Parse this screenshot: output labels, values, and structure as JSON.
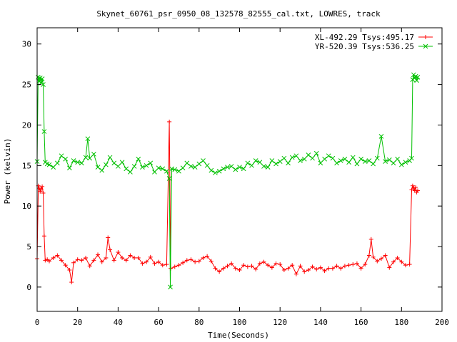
{
  "chart_data": {
    "type": "scatter",
    "title": "Skynet_60761_psr_0950_08_132578_82555_cal.txt, LOWRES, track",
    "xlabel": "Time(Seconds)",
    "ylabel": "Power (kelvin)",
    "xlim": [
      0,
      200
    ],
    "ylim": [
      -3,
      32
    ],
    "xticks": [
      0,
      20,
      40,
      60,
      80,
      100,
      120,
      140,
      160,
      180,
      200
    ],
    "yticks": [
      0,
      5,
      10,
      15,
      20,
      25,
      30
    ],
    "xtick_labels": [
      "0",
      "20",
      "40",
      "60",
      "80",
      "100",
      "120",
      "140",
      "160",
      "180",
      "200"
    ],
    "ytick_labels": [
      "0",
      "5",
      "10",
      "15",
      "20",
      "25",
      "30"
    ],
    "grid": false,
    "legend_position": "top-right",
    "series": [
      {
        "name": "XL-492.29 Tsys:495.17",
        "color": "#ff0000",
        "marker": "plus",
        "x": [
          0,
          0.6,
          1,
          1.5,
          2,
          2.5,
          3,
          3.5,
          4,
          5,
          6,
          8,
          10,
          12,
          14,
          16,
          17,
          18,
          20,
          22,
          24,
          26,
          28,
          30,
          32,
          34,
          35,
          36,
          38,
          40,
          42,
          44,
          46,
          48,
          50,
          52,
          54,
          56,
          58,
          60,
          62,
          64,
          65.3,
          66,
          68,
          70,
          72,
          74,
          76,
          78,
          80,
          82,
          84,
          86,
          88,
          90,
          92,
          94,
          96,
          98,
          100,
          102,
          104,
          106,
          108,
          110,
          112,
          114,
          116,
          118,
          120,
          122,
          124,
          126,
          128,
          130,
          132,
          134,
          136,
          138,
          140,
          142,
          144,
          146,
          148,
          150,
          152,
          154,
          156,
          158,
          160,
          162,
          164,
          165,
          166,
          168,
          170,
          172,
          174,
          176,
          178,
          180,
          182,
          184,
          185,
          185.5,
          186,
          186.5,
          187,
          187.5,
          188
        ],
        "y": [
          3.5,
          12.5,
          12.2,
          11.8,
          12.1,
          12.4,
          11.6,
          6.3,
          3.3,
          3.4,
          3.2,
          3.6,
          3.9,
          3.3,
          2.7,
          2.1,
          0.6,
          3.0,
          3.4,
          3.3,
          3.6,
          2.6,
          3.3,
          4.0,
          3.1,
          3.6,
          6.1,
          4.6,
          3.3,
          4.3,
          3.6,
          3.3,
          3.9,
          3.6,
          3.6,
          2.9,
          3.1,
          3.7,
          2.9,
          3.1,
          2.7,
          2.8,
          20.4,
          2.3,
          2.5,
          2.7,
          3.0,
          3.3,
          3.4,
          3.1,
          3.2,
          3.6,
          3.8,
          3.2,
          2.3,
          1.9,
          2.3,
          2.6,
          2.9,
          2.3,
          2.1,
          2.7,
          2.5,
          2.6,
          2.2,
          2.9,
          3.1,
          2.7,
          2.4,
          2.9,
          2.8,
          2.1,
          2.3,
          2.7,
          1.6,
          2.6,
          1.9,
          2.1,
          2.5,
          2.2,
          2.4,
          2.0,
          2.3,
          2.3,
          2.6,
          2.3,
          2.6,
          2.7,
          2.8,
          2.9,
          2.3,
          2.8,
          3.9,
          5.9,
          3.7,
          3.2,
          3.5,
          3.9,
          2.4,
          3.1,
          3.6,
          3.1,
          2.7,
          2.8,
          12.0,
          12.5,
          12.2,
          11.9,
          12.3,
          11.7,
          11.9
        ]
      },
      {
        "name": "YR-520.39 Tsys:536.25",
        "color": "#00c000",
        "marker": "x",
        "x": [
          0,
          0.5,
          1,
          1.5,
          2,
          2.5,
          3,
          3.5,
          4,
          5,
          6,
          8,
          10,
          12,
          14,
          16,
          18,
          20,
          22,
          24,
          25,
          26,
          28,
          30,
          32,
          34,
          36,
          38,
          40,
          42,
          44,
          46,
          48,
          50,
          52,
          54,
          56,
          58,
          60,
          62,
          64,
          65.3,
          65.8,
          66.5,
          68,
          70,
          72,
          74,
          76,
          78,
          80,
          82,
          84,
          86,
          88,
          90,
          92,
          94,
          96,
          98,
          100,
          102,
          104,
          106,
          108,
          110,
          112,
          114,
          116,
          118,
          120,
          122,
          124,
          126,
          128,
          130,
          132,
          134,
          136,
          138,
          140,
          142,
          144,
          146,
          148,
          150,
          152,
          154,
          156,
          158,
          160,
          162,
          164,
          166,
          168,
          170,
          172,
          174,
          176,
          178,
          180,
          182,
          184,
          185,
          185.5,
          186,
          186.5,
          187,
          187.5,
          188
        ],
        "y": [
          15.5,
          25.9,
          25.4,
          25.8,
          25.2,
          25.7,
          25.0,
          19.2,
          15.4,
          15.2,
          15.1,
          14.8,
          15.3,
          16.2,
          15.8,
          14.7,
          15.6,
          15.4,
          15.3,
          16.0,
          18.3,
          15.9,
          16.4,
          14.8,
          14.4,
          15.1,
          16.0,
          15.3,
          14.9,
          15.4,
          14.6,
          14.2,
          14.9,
          15.8,
          14.8,
          15.0,
          15.3,
          14.2,
          14.7,
          14.6,
          14.3,
          13.4,
          0.0,
          14.6,
          14.5,
          14.3,
          14.7,
          15.3,
          14.9,
          14.8,
          15.2,
          15.6,
          15.0,
          14.4,
          14.1,
          14.3,
          14.6,
          14.8,
          14.9,
          14.5,
          14.8,
          14.6,
          15.3,
          15.0,
          15.6,
          15.4,
          14.9,
          14.8,
          15.6,
          15.2,
          15.5,
          15.9,
          15.3,
          16.0,
          16.2,
          15.6,
          15.8,
          16.3,
          15.9,
          16.5,
          15.3,
          15.8,
          16.2,
          15.9,
          15.3,
          15.6,
          15.8,
          15.4,
          16.0,
          15.2,
          15.8,
          15.5,
          15.6,
          15.2,
          15.9,
          18.6,
          15.5,
          15.7,
          15.3,
          15.8,
          15.1,
          15.4,
          15.6,
          15.9,
          25.6,
          26.2,
          25.8,
          26.0,
          25.5,
          25.9
        ]
      }
    ]
  }
}
